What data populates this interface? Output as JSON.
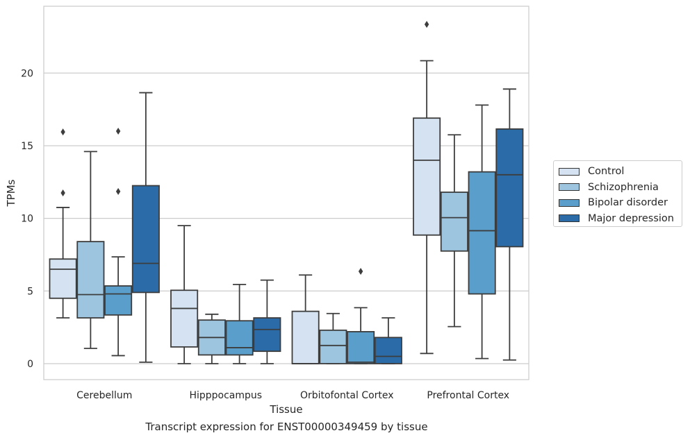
{
  "chart_data": {
    "type": "box",
    "ylabel": "TPMs",
    "xlabel": "Tissue",
    "caption": "Transcript expression for ENST00000349459 by tissue",
    "ylim": [
      -1.1,
      24.6
    ],
    "yticks": [
      0,
      5,
      10,
      15,
      20
    ],
    "grid": "horizontal",
    "legend_position": "right",
    "categories": [
      "Cerebellum",
      "Hipppocampus",
      "Orbitofontal Cortex",
      "Prefrontal Cortex"
    ],
    "series": [
      {
        "name": "Control",
        "color": "#d4e2f1",
        "boxes": [
          {
            "min": 3.15,
            "q1": 4.5,
            "median": 6.5,
            "q3": 7.2,
            "max": 10.75,
            "outliers": [
              11.75,
              15.95
            ]
          },
          {
            "min": 0.0,
            "q1": 1.15,
            "median": 3.8,
            "q3": 5.05,
            "max": 9.5,
            "outliers": []
          },
          {
            "min": 0.0,
            "q1": 0.0,
            "median": 0.0,
            "q3": 3.6,
            "max": 6.1,
            "outliers": []
          },
          {
            "min": 0.7,
            "q1": 8.85,
            "median": 14.0,
            "q3": 16.9,
            "max": 20.85,
            "outliers": [
              23.35
            ]
          }
        ]
      },
      {
        "name": "Schizophrenia",
        "color": "#9dc5df",
        "boxes": [
          {
            "min": 1.05,
            "q1": 3.15,
            "median": 4.75,
            "q3": 8.4,
            "max": 14.6,
            "outliers": []
          },
          {
            "min": 0.0,
            "q1": 0.6,
            "median": 1.8,
            "q3": 3.0,
            "max": 3.4,
            "outliers": []
          },
          {
            "min": 0.0,
            "q1": 0.0,
            "median": 1.25,
            "q3": 2.3,
            "max": 3.45,
            "outliers": []
          },
          {
            "min": 2.55,
            "q1": 7.75,
            "median": 10.05,
            "q3": 11.8,
            "max": 15.75,
            "outliers": []
          }
        ]
      },
      {
        "name": "Bipolar disorder",
        "color": "#5a9fcb",
        "boxes": [
          {
            "min": 0.55,
            "q1": 3.35,
            "median": 4.8,
            "q3": 5.35,
            "max": 7.35,
            "outliers": [
              11.85,
              16.0
            ]
          },
          {
            "min": 0.0,
            "q1": 0.6,
            "median": 1.1,
            "q3": 2.95,
            "max": 5.45,
            "outliers": []
          },
          {
            "min": 0.0,
            "q1": 0.0,
            "median": 0.1,
            "q3": 2.2,
            "max": 3.85,
            "outliers": [
              6.35
            ]
          },
          {
            "min": 0.35,
            "q1": 4.8,
            "median": 9.15,
            "q3": 13.2,
            "max": 17.8,
            "outliers": []
          }
        ]
      },
      {
        "name": "Major depression",
        "color": "#2b6ba8",
        "boxes": [
          {
            "min": 0.1,
            "q1": 4.9,
            "median": 6.9,
            "q3": 12.25,
            "max": 18.65,
            "outliers": []
          },
          {
            "min": 0.0,
            "q1": 0.85,
            "median": 2.35,
            "q3": 3.15,
            "max": 5.75,
            "outliers": []
          },
          {
            "min": 0.0,
            "q1": 0.0,
            "median": 0.5,
            "q3": 1.8,
            "max": 3.15,
            "outliers": []
          },
          {
            "min": 0.25,
            "q1": 8.05,
            "median": 13.0,
            "q3": 16.15,
            "max": 18.9,
            "outliers": []
          }
        ]
      }
    ]
  }
}
